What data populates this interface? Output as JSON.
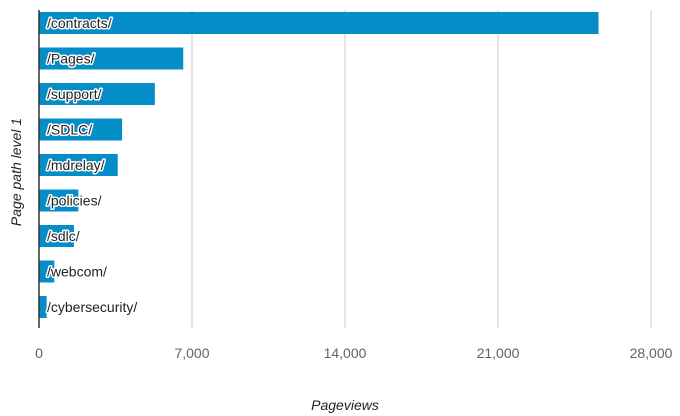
{
  "chart_data": {
    "type": "bar",
    "orientation": "horizontal",
    "categories": [
      "/contracts/",
      "/Pages/",
      "/support/",
      "/SDLC/",
      "/mdrelay/",
      "/policies/",
      "/sdlc/",
      "/webcom/",
      "/cybersecurity/"
    ],
    "values": [
      25600,
      6600,
      5300,
      3800,
      3600,
      1800,
      1600,
      700,
      350
    ],
    "xlabel": "Pageviews",
    "ylabel": "Page path level 1",
    "xlim": [
      0,
      28000
    ],
    "xticks": [
      0,
      7000,
      14000,
      21000,
      28000
    ],
    "xtick_labels": [
      "0",
      "7,000",
      "14,000",
      "21,000",
      "28,000"
    ],
    "grid": true,
    "legend": "none",
    "bar_color": "#058dc7",
    "grid_color": "#cccccc",
    "axis_color": "#333333"
  }
}
